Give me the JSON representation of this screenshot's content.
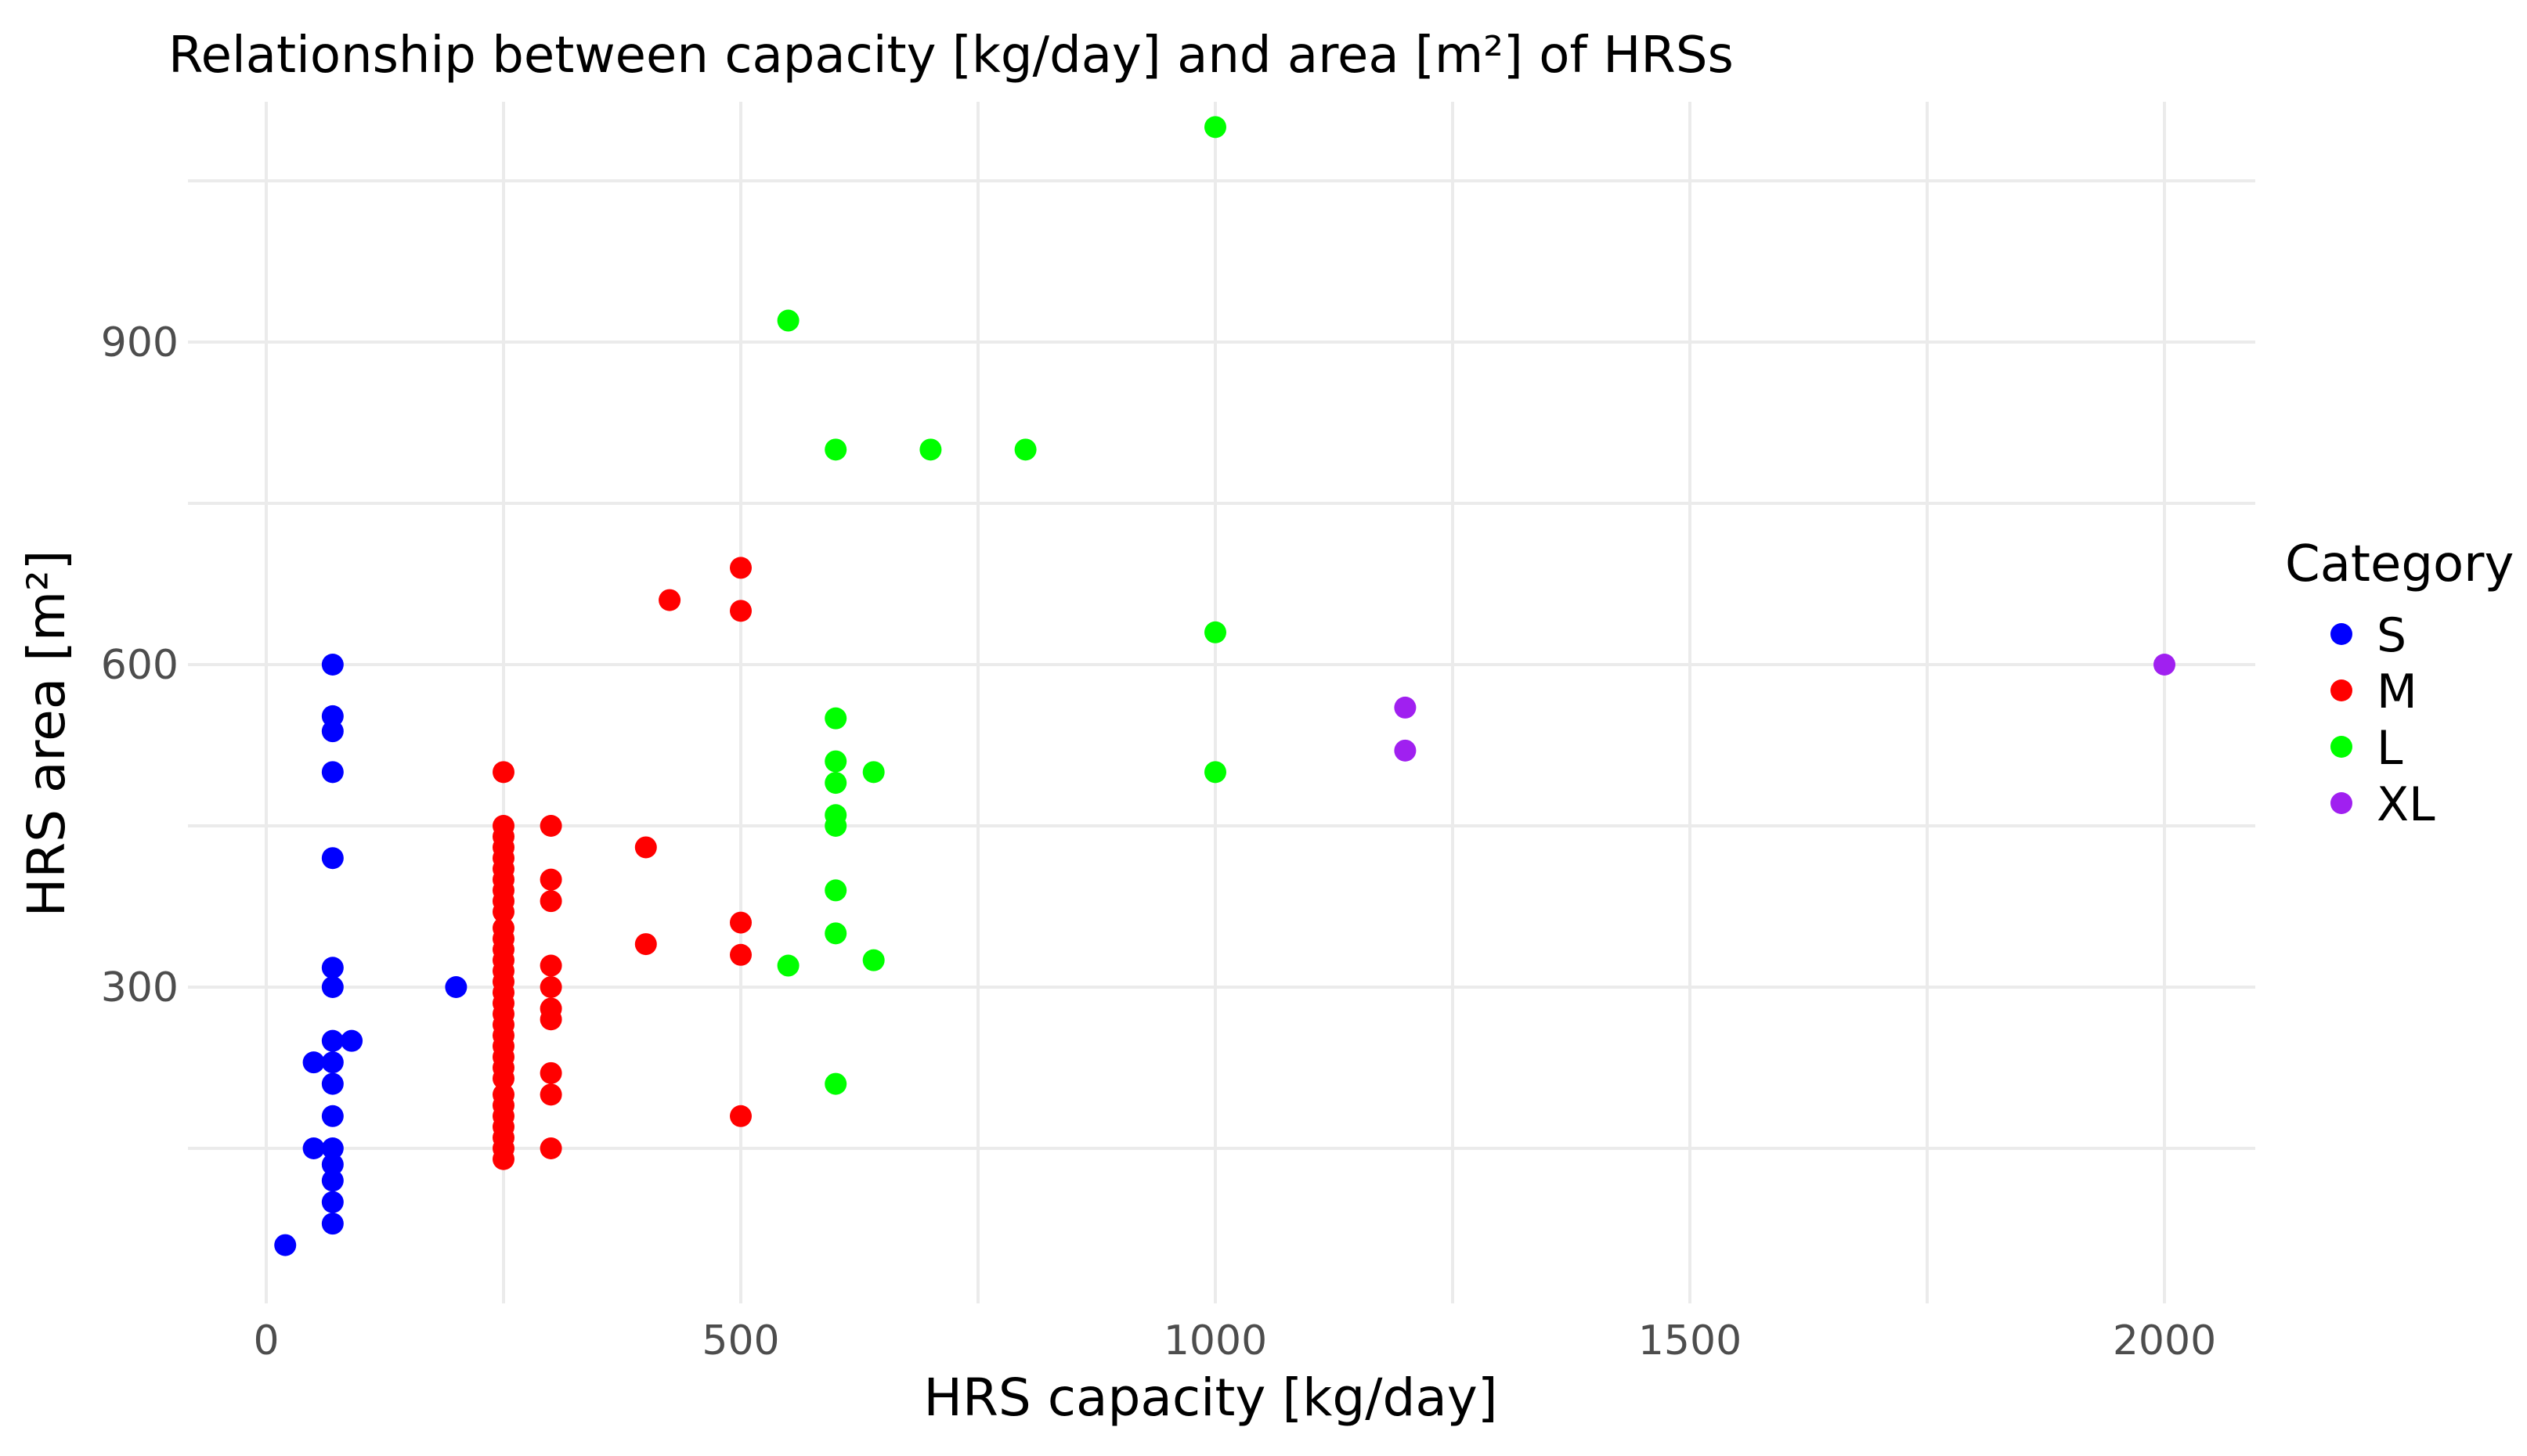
{
  "chart_data": {
    "type": "scatter",
    "title": "Relationship between capacity [kg/day] and area [m²] of HRSs",
    "xlabel": "HRS capacity [kg/day]",
    "ylabel": "HRS area [m²]",
    "xlim": [
      -80,
      2100
    ],
    "ylim": [
      0,
      1150
    ],
    "x_ticks": [
      0,
      500,
      1000,
      1500,
      2000
    ],
    "x_tick_labels": [
      "0",
      "500",
      "1000",
      "1500",
      "2000"
    ],
    "y_ticks": [
      300,
      600,
      900
    ],
    "y_tick_labels": [
      "300",
      "600",
      "900"
    ],
    "x_grid_minor": [
      250,
      750,
      1250,
      1750
    ],
    "y_grid_minor": [
      150,
      450,
      750,
      1050
    ],
    "grid": true,
    "legend": {
      "title": "Category",
      "position": "right",
      "entries": [
        "S",
        "M",
        "L",
        "XL"
      ]
    },
    "series": [
      {
        "name": "S",
        "color": "#0000ff",
        "points": [
          [
            20,
            60
          ],
          [
            50,
            150
          ],
          [
            50,
            230
          ],
          [
            70,
            80
          ],
          [
            70,
            100
          ],
          [
            70,
            120
          ],
          [
            70,
            135
          ],
          [
            70,
            150
          ],
          [
            70,
            180
          ],
          [
            70,
            210
          ],
          [
            70,
            230
          ],
          [
            70,
            250
          ],
          [
            70,
            300
          ],
          [
            70,
            318
          ],
          [
            70,
            420
          ],
          [
            70,
            500
          ],
          [
            70,
            538
          ],
          [
            70,
            552
          ],
          [
            70,
            600
          ],
          [
            90,
            250
          ],
          [
            200,
            300
          ]
        ]
      },
      {
        "name": "M",
        "color": "#ff0000",
        "points": [
          [
            250,
            140
          ],
          [
            250,
            150
          ],
          [
            250,
            160
          ],
          [
            250,
            170
          ],
          [
            250,
            180
          ],
          [
            250,
            190
          ],
          [
            250,
            200
          ],
          [
            250,
            215
          ],
          [
            250,
            225
          ],
          [
            250,
            235
          ],
          [
            250,
            245
          ],
          [
            250,
            255
          ],
          [
            250,
            265
          ],
          [
            250,
            275
          ],
          [
            250,
            285
          ],
          [
            250,
            295
          ],
          [
            250,
            305
          ],
          [
            250,
            315
          ],
          [
            250,
            325
          ],
          [
            250,
            335
          ],
          [
            250,
            345
          ],
          [
            250,
            355
          ],
          [
            250,
            370
          ],
          [
            250,
            380
          ],
          [
            250,
            390
          ],
          [
            250,
            400
          ],
          [
            250,
            410
          ],
          [
            250,
            420
          ],
          [
            250,
            430
          ],
          [
            250,
            440
          ],
          [
            250,
            450
          ],
          [
            250,
            500
          ],
          [
            300,
            150
          ],
          [
            300,
            200
          ],
          [
            300,
            220
          ],
          [
            300,
            270
          ],
          [
            300,
            280
          ],
          [
            300,
            300
          ],
          [
            300,
            320
          ],
          [
            300,
            380
          ],
          [
            300,
            400
          ],
          [
            300,
            450
          ],
          [
            400,
            340
          ],
          [
            400,
            430
          ],
          [
            425,
            660
          ],
          [
            500,
            180
          ],
          [
            500,
            330
          ],
          [
            500,
            360
          ],
          [
            500,
            650
          ],
          [
            500,
            690
          ]
        ]
      },
      {
        "name": "L",
        "color": "#00ff00",
        "points": [
          [
            550,
            320
          ],
          [
            550,
            920
          ],
          [
            600,
            210
          ],
          [
            600,
            350
          ],
          [
            600,
            390
          ],
          [
            600,
            450
          ],
          [
            600,
            460
          ],
          [
            600,
            490
          ],
          [
            600,
            510
          ],
          [
            600,
            550
          ],
          [
            600,
            800
          ],
          [
            640,
            325
          ],
          [
            640,
            500
          ],
          [
            700,
            800
          ],
          [
            800,
            800
          ],
          [
            1000,
            500
          ],
          [
            1000,
            630
          ],
          [
            1000,
            1100
          ]
        ]
      },
      {
        "name": "XL",
        "color": "#a020f0",
        "points": [
          [
            1200,
            520
          ],
          [
            1200,
            560
          ],
          [
            2000,
            600
          ]
        ]
      }
    ]
  }
}
